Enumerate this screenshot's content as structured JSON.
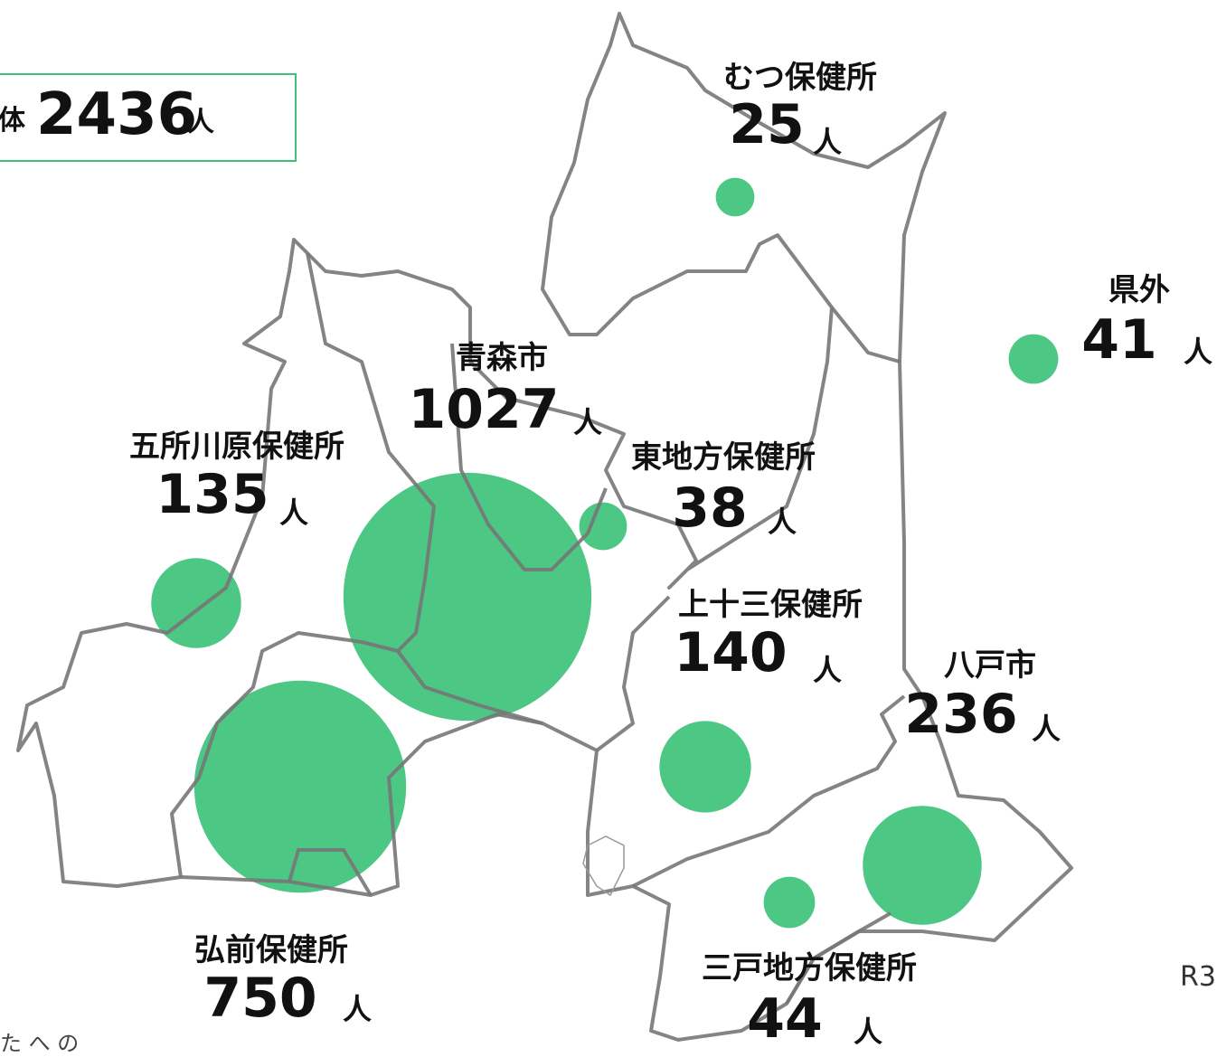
{
  "total": {
    "label": "体",
    "value": 2436,
    "unit": "人"
  },
  "regions": [
    {
      "name": "むつ保健所",
      "count": 25,
      "unit": "人"
    },
    {
      "name": "県外",
      "count": 41,
      "unit": "人"
    },
    {
      "name": "青森市",
      "count": 1027,
      "unit": "人"
    },
    {
      "name": "五所川原保健所",
      "count": 135,
      "unit": "人"
    },
    {
      "name": "東地方保健所",
      "count": 38,
      "unit": "人"
    },
    {
      "name": "上十三保健所",
      "count": 140,
      "unit": "人"
    },
    {
      "name": "八戸市",
      "count": 236,
      "unit": "人"
    },
    {
      "name": "三戸地方保健所",
      "count": 44,
      "unit": "人"
    },
    {
      "name": "弘前保健所",
      "count": 750,
      "unit": "人"
    }
  ],
  "notes": [
    "R3",
    "た へ の"
  ]
}
